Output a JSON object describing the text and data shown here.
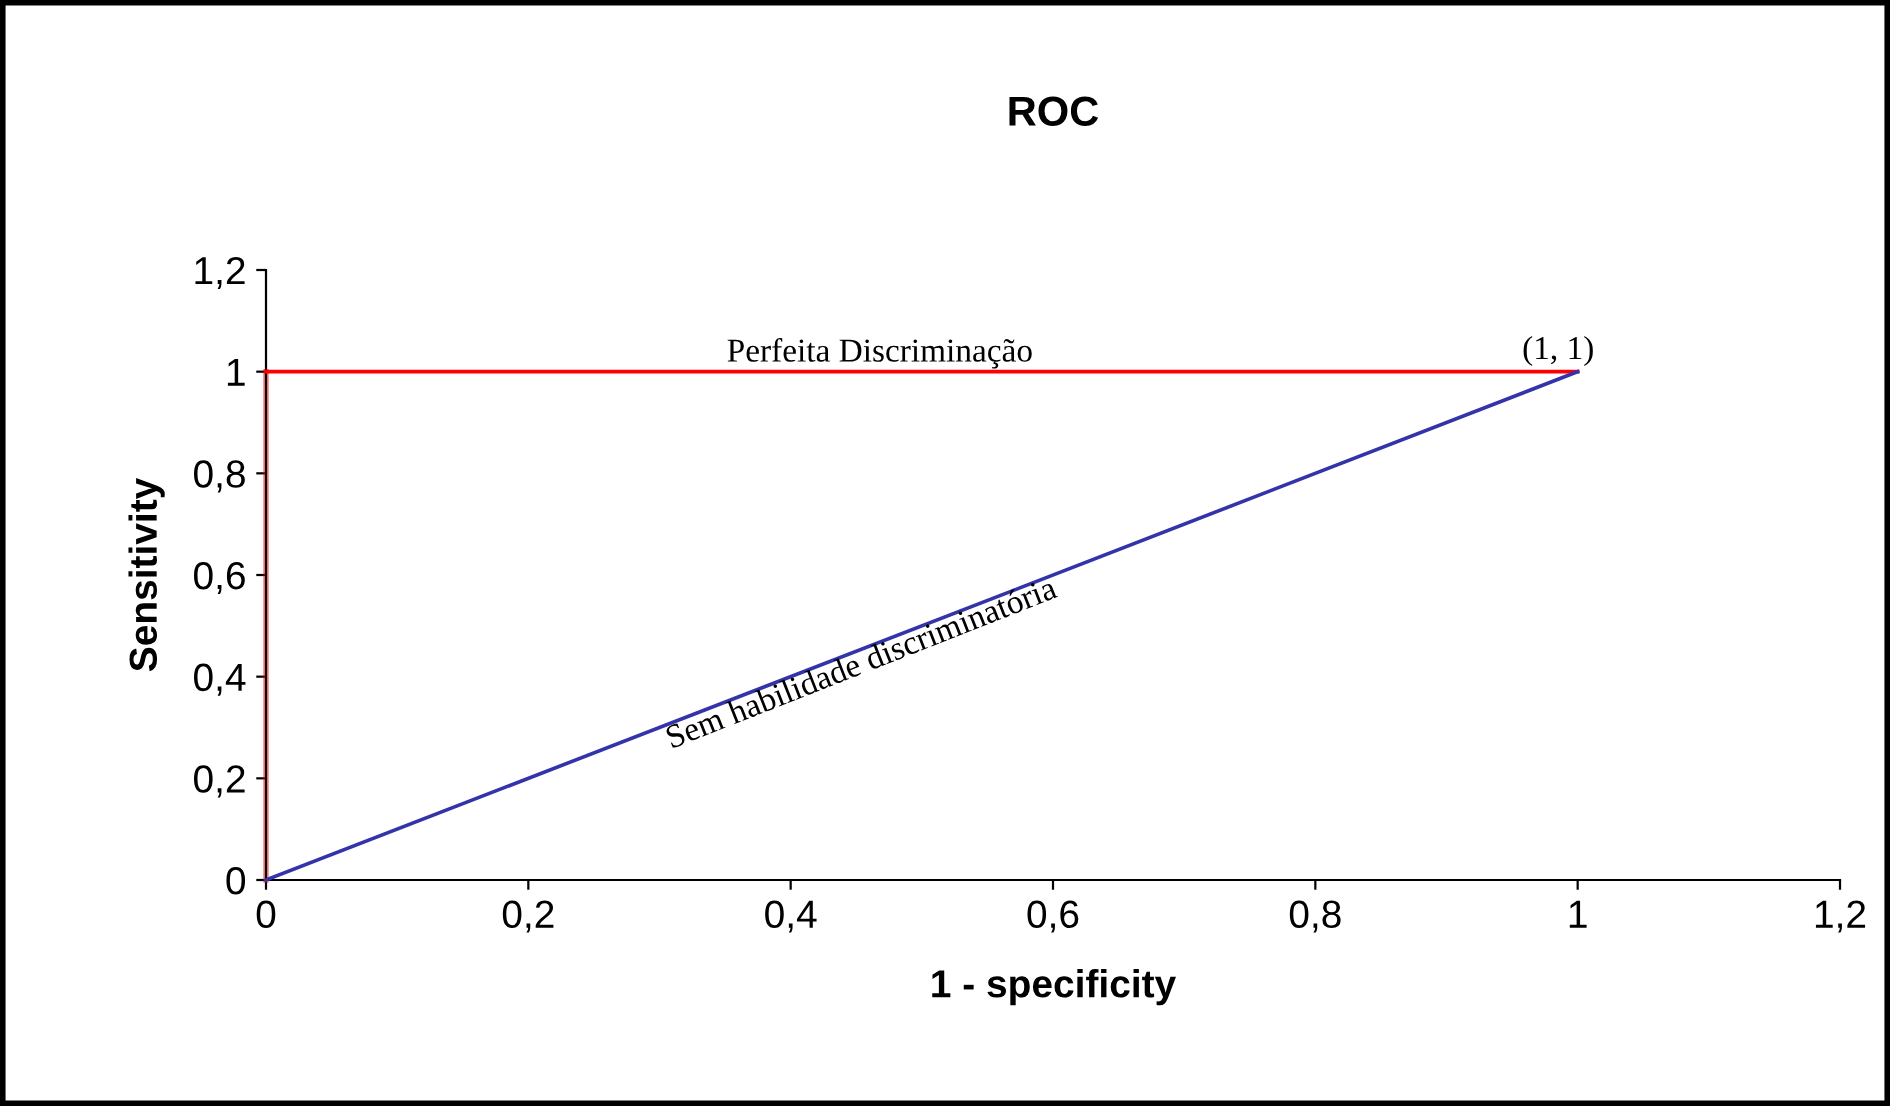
{
  "chart_data": {
    "type": "line",
    "title": "ROC",
    "xlabel": "1 - specificity",
    "ylabel": "Sensitivity",
    "x": [
      0,
      1
    ],
    "series": [
      {
        "color": "#ff0000",
        "values": [
          1,
          1
        ]
      },
      {
        "color": "#3333aa",
        "values": [
          0,
          1
        ]
      }
    ],
    "xlim": [
      0,
      1.2
    ],
    "ylim": [
      0,
      1.2
    ],
    "xticks": [
      0,
      {
        "value": 0.2,
        "label": "0,2"
      },
      {
        "value": 0.4,
        "label": "0,4"
      },
      {
        "value": 0.6,
        "label": "0,6"
      },
      {
        "value": 0.8,
        "label": "0,8"
      },
      1,
      {
        "value": 1.2,
        "label": "1,2"
      }
    ],
    "yticks": [
      0,
      {
        "value": 0.2,
        "label": "0,2"
      },
      {
        "value": 0.4,
        "label": "0,4"
      },
      {
        "value": 0.6,
        "label": "0,6"
      },
      {
        "value": 0.8,
        "label": "0,8"
      },
      1,
      {
        "value": 1.2,
        "label": "1,2"
      }
    ],
    "ref_lines": [
      {
        "axis": "x",
        "value": 0,
        "color": "#ff0000"
      }
    ],
    "annotations": [
      "Perfeita Discriminação",
      {
        "text": "(1, 1)",
        "x": 1,
        "y": 1
      },
      {
        "text": "Sem habilidade discriminatória",
        "x": 0.45,
        "y": 0.45
      }
    ],
    "grid": false,
    "marker": "none",
    "line_style": "solid"
  }
}
